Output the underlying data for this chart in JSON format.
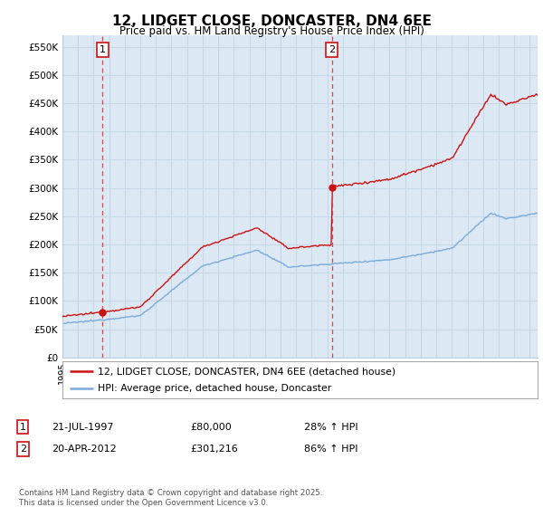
{
  "title": "12, LIDGET CLOSE, DONCASTER, DN4 6EE",
  "subtitle": "Price paid vs. HM Land Registry's House Price Index (HPI)",
  "ylabel_ticks": [
    "£0",
    "£50K",
    "£100K",
    "£150K",
    "£200K",
    "£250K",
    "£300K",
    "£350K",
    "£400K",
    "£450K",
    "£500K",
    "£550K"
  ],
  "ytick_vals": [
    0,
    50000,
    100000,
    150000,
    200000,
    250000,
    300000,
    350000,
    400000,
    450000,
    500000,
    550000
  ],
  "ylim": [
    0,
    570000
  ],
  "xlim_start": 1995.0,
  "xlim_end": 2025.5,
  "hpi_color": "#7aabdb",
  "price_color": "#cc1111",
  "chart_bg_color": "#dce9f5",
  "purchase1_date": 1997.58,
  "purchase1_price": 80000,
  "purchase2_date": 2012.3,
  "purchase2_price": 301216,
  "legend_house_label": "12, LIDGET CLOSE, DONCASTER, DN4 6EE (detached house)",
  "legend_hpi_label": "HPI: Average price, detached house, Doncaster",
  "annotation1_label": "1",
  "annotation2_label": "2",
  "table_row1": [
    "1",
    "21-JUL-1997",
    "£80,000",
    "28% ↑ HPI"
  ],
  "table_row2": [
    "2",
    "20-APR-2012",
    "£301,216",
    "86% ↑ HPI"
  ],
  "footnote": "Contains HM Land Registry data © Crown copyright and database right 2025.\nThis data is licensed under the Open Government Licence v3.0.",
  "background_color": "#ffffff",
  "grid_color": "#c8d8e8",
  "vline_color": "#dd4444"
}
